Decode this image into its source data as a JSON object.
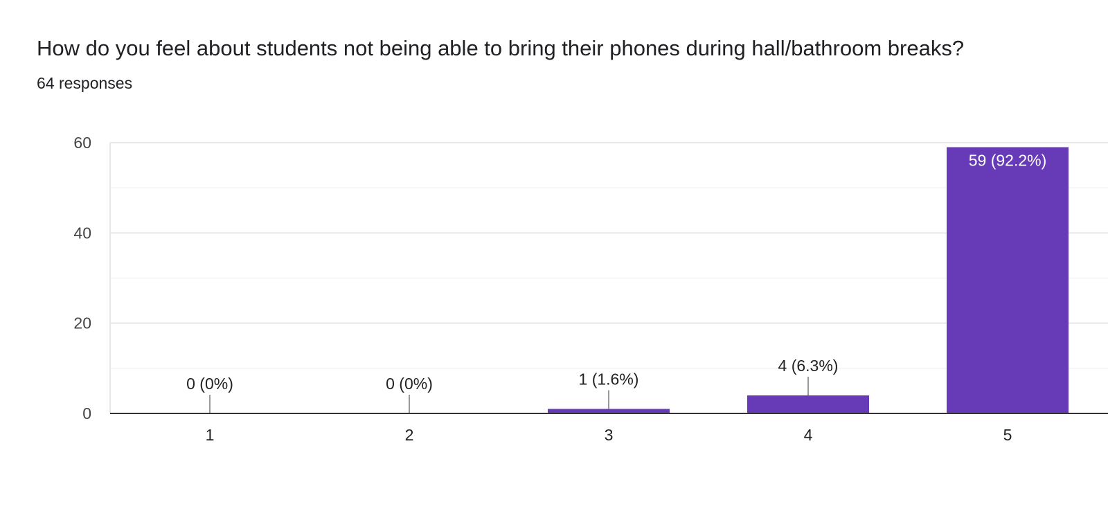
{
  "question": {
    "title": "How do you feel about students not being able to bring their phones during hall/bathroom breaks?",
    "response_count": "64 responses"
  },
  "colors": {
    "bar": "#673ab7",
    "grid_major": "#e8e8e8",
    "grid_minor": "#f3f3f3",
    "baseline": "#333333",
    "leader": "#999999"
  },
  "chart_data": {
    "type": "bar",
    "title": "",
    "xlabel": "",
    "ylabel": "",
    "categories": [
      "1",
      "2",
      "3",
      "4",
      "5"
    ],
    "values": [
      0,
      0,
      1,
      4,
      59
    ],
    "data_labels": [
      "0 (0%)",
      "0 (0%)",
      "1 (1.6%)",
      "4 (6.3%)",
      "59 (92.2%)"
    ],
    "ylim": [
      0,
      60
    ],
    "yticks": [
      0,
      20,
      40,
      60
    ],
    "yticks_minor": [
      10,
      30,
      50
    ],
    "grid": true,
    "legend": "none"
  }
}
